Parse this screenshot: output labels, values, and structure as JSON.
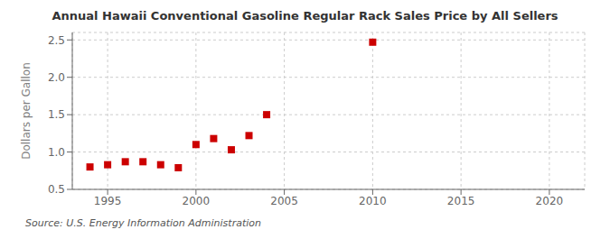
{
  "chart_data": {
    "type": "scatter",
    "title": "Annual Hawaii Conventional Gasoline Regular Rack Sales Price by All Sellers",
    "y_label": "Dollars per Gallon",
    "annotations": [
      "Source: U.S. Energy Information Administration"
    ],
    "x": [
      1994,
      1995,
      1996,
      1997,
      1998,
      1999,
      2000,
      2001,
      2002,
      2003,
      2004,
      2010
    ],
    "values": [
      0.8,
      0.83,
      0.87,
      0.87,
      0.83,
      0.79,
      1.1,
      1.18,
      1.03,
      1.22,
      1.5,
      2.47
    ],
    "xlim": [
      1993,
      2022
    ],
    "ylim": [
      0.5,
      2.6
    ],
    "xticks": [
      1995,
      2000,
      2005,
      2010,
      2015,
      2020
    ],
    "yticks": [
      0.5,
      {
        "value": 1.0,
        "label": "1.0"
      },
      1.5,
      {
        "value": 2.0,
        "label": "2.0"
      },
      2.5
    ],
    "color": "#cc0000",
    "marker": "square",
    "grid": true
  }
}
